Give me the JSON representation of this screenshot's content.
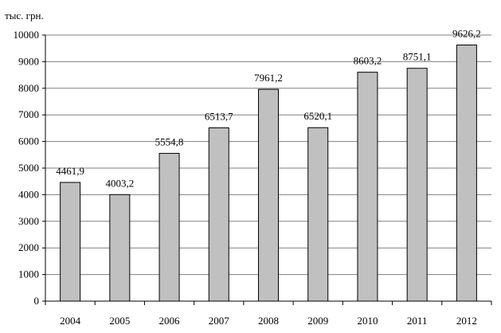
{
  "chart_data": {
    "type": "bar",
    "unit_label": "тыс. грн.",
    "categories": [
      "2004",
      "2005",
      "2006",
      "2007",
      "2008",
      "2009",
      "2010",
      "2011",
      "2012"
    ],
    "values": [
      4461.9,
      4003.2,
      5554.8,
      6513.7,
      7961.2,
      6520.1,
      8603.2,
      8751.1,
      9626.2
    ],
    "value_labels": [
      "4461,9",
      "4003,2",
      "5554,8",
      "6513,7",
      "7961,2",
      "6520,1",
      "8603,2",
      "8751,1",
      "9626,2"
    ],
    "ylim": [
      0,
      10000
    ],
    "yticks": [
      0,
      1000,
      2000,
      3000,
      4000,
      5000,
      6000,
      7000,
      8000,
      9000,
      10000
    ],
    "ytick_labels": [
      "0",
      "1000",
      "2000",
      "3000",
      "4000",
      "5000",
      "6000",
      "7000",
      "8000",
      "9000",
      "10000"
    ],
    "grid": true,
    "legend": "none",
    "bar_color": "#c0c0c0",
    "bar_edge_color": "#000000",
    "grid_color": "#808080"
  }
}
